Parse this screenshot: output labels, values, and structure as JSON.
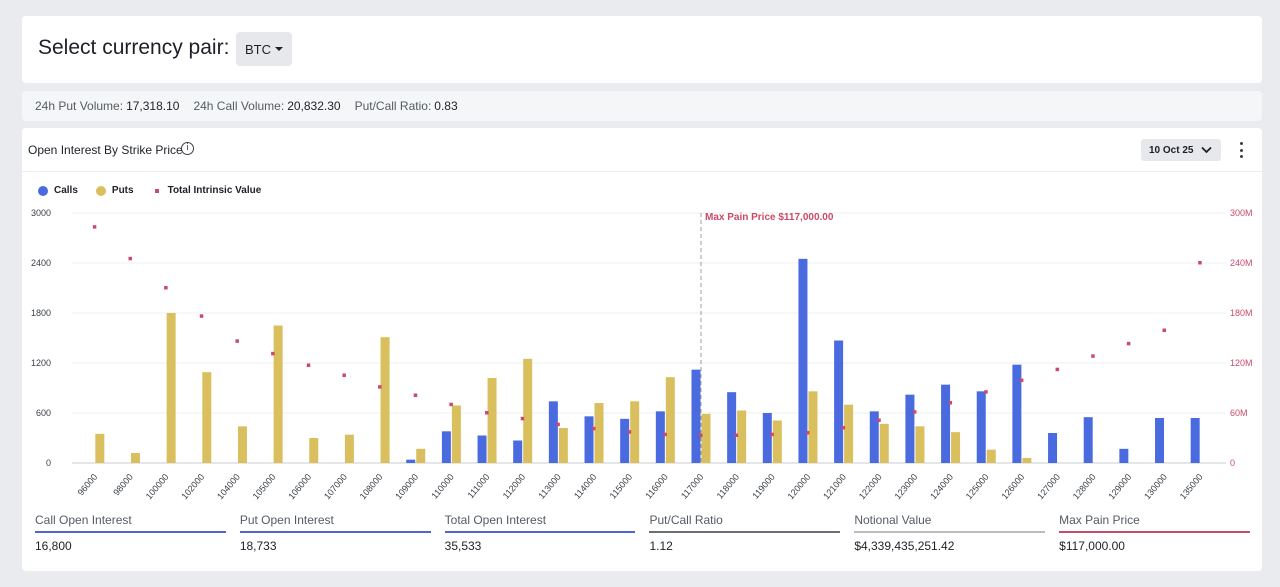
{
  "header": {
    "title": "Select currency pair:",
    "currency": "BTC"
  },
  "stats": [
    {
      "label": "24h Put Volume:",
      "value": "17,318.10"
    },
    {
      "label": "24h Call Volume:",
      "value": "20,832.30"
    },
    {
      "label": "Put/Call Ratio:",
      "value": "0.83"
    }
  ],
  "chart_card": {
    "title": "Open Interest By Strike Price",
    "expiry": "10 Oct 25"
  },
  "colors": {
    "calls": "#4a6ae0",
    "puts": "#d9bf5e",
    "intrinsic": "#c94a6a",
    "accent_blue": "#4f63d2",
    "accent_red": "#c94a6a"
  },
  "chart_data": {
    "type": "bar",
    "categories": [
      "96000",
      "98000",
      "100000",
      "102000",
      "104000",
      "105000",
      "106000",
      "107000",
      "108000",
      "109000",
      "110000",
      "111000",
      "112000",
      "113000",
      "114000",
      "115000",
      "116000",
      "117000",
      "118000",
      "119000",
      "120000",
      "121000",
      "122000",
      "123000",
      "124000",
      "125000",
      "126000",
      "127000",
      "128000",
      "129000",
      "130000",
      "135000"
    ],
    "series": [
      {
        "name": "Calls",
        "axis": "left",
        "values": [
          0,
          0,
          0,
          0,
          0,
          0,
          0,
          0,
          0,
          40,
          380,
          330,
          270,
          740,
          560,
          530,
          620,
          1120,
          850,
          600,
          2450,
          1470,
          620,
          820,
          940,
          860,
          1180,
          360,
          550,
          170,
          540,
          540
        ]
      },
      {
        "name": "Puts",
        "axis": "left",
        "values": [
          350,
          120,
          1800,
          1090,
          440,
          1650,
          300,
          340,
          1510,
          170,
          690,
          1020,
          1250,
          420,
          720,
          740,
          1030,
          590,
          630,
          510,
          860,
          700,
          470,
          440,
          370,
          160,
          60,
          0,
          0,
          0,
          0,
          0
        ]
      },
      {
        "name": "Total Intrinsic Value",
        "axis": "right",
        "type": "scatter",
        "values": [
          283,
          245,
          210,
          176,
          146,
          131,
          117,
          105,
          91,
          81,
          70,
          60,
          53,
          46,
          41,
          37,
          34,
          33,
          33,
          34,
          36,
          42,
          51,
          61,
          72,
          85,
          99,
          112,
          128,
          143,
          159,
          240
        ]
      }
    ],
    "ylim_left": [
      0,
      3000
    ],
    "yticks_left": [
      "0",
      "600",
      "1200",
      "1800",
      "2400",
      "3000"
    ],
    "ylim_right": [
      0,
      300
    ],
    "yticks_right": [
      "0",
      "60M",
      "120M",
      "180M",
      "240M",
      "300M"
    ],
    "max_pain_category": "117000",
    "max_pain_label": "Max Pain Price $117,000.00",
    "legend": [
      "Calls",
      "Puts",
      "Total Intrinsic Value"
    ],
    "legend_position": "top-left",
    "grid": true
  },
  "summary": [
    {
      "label": "Call Open Interest",
      "value": "16,800"
    },
    {
      "label": "Put Open Interest",
      "value": "18,733"
    },
    {
      "label": "Total Open Interest",
      "value": "35,533"
    },
    {
      "label": "Put/Call Ratio",
      "value": "1.12"
    },
    {
      "label": "Notional Value",
      "value": "$4,339,435,251.42"
    },
    {
      "label": "Max Pain Price",
      "value": "$117,000.00"
    }
  ]
}
